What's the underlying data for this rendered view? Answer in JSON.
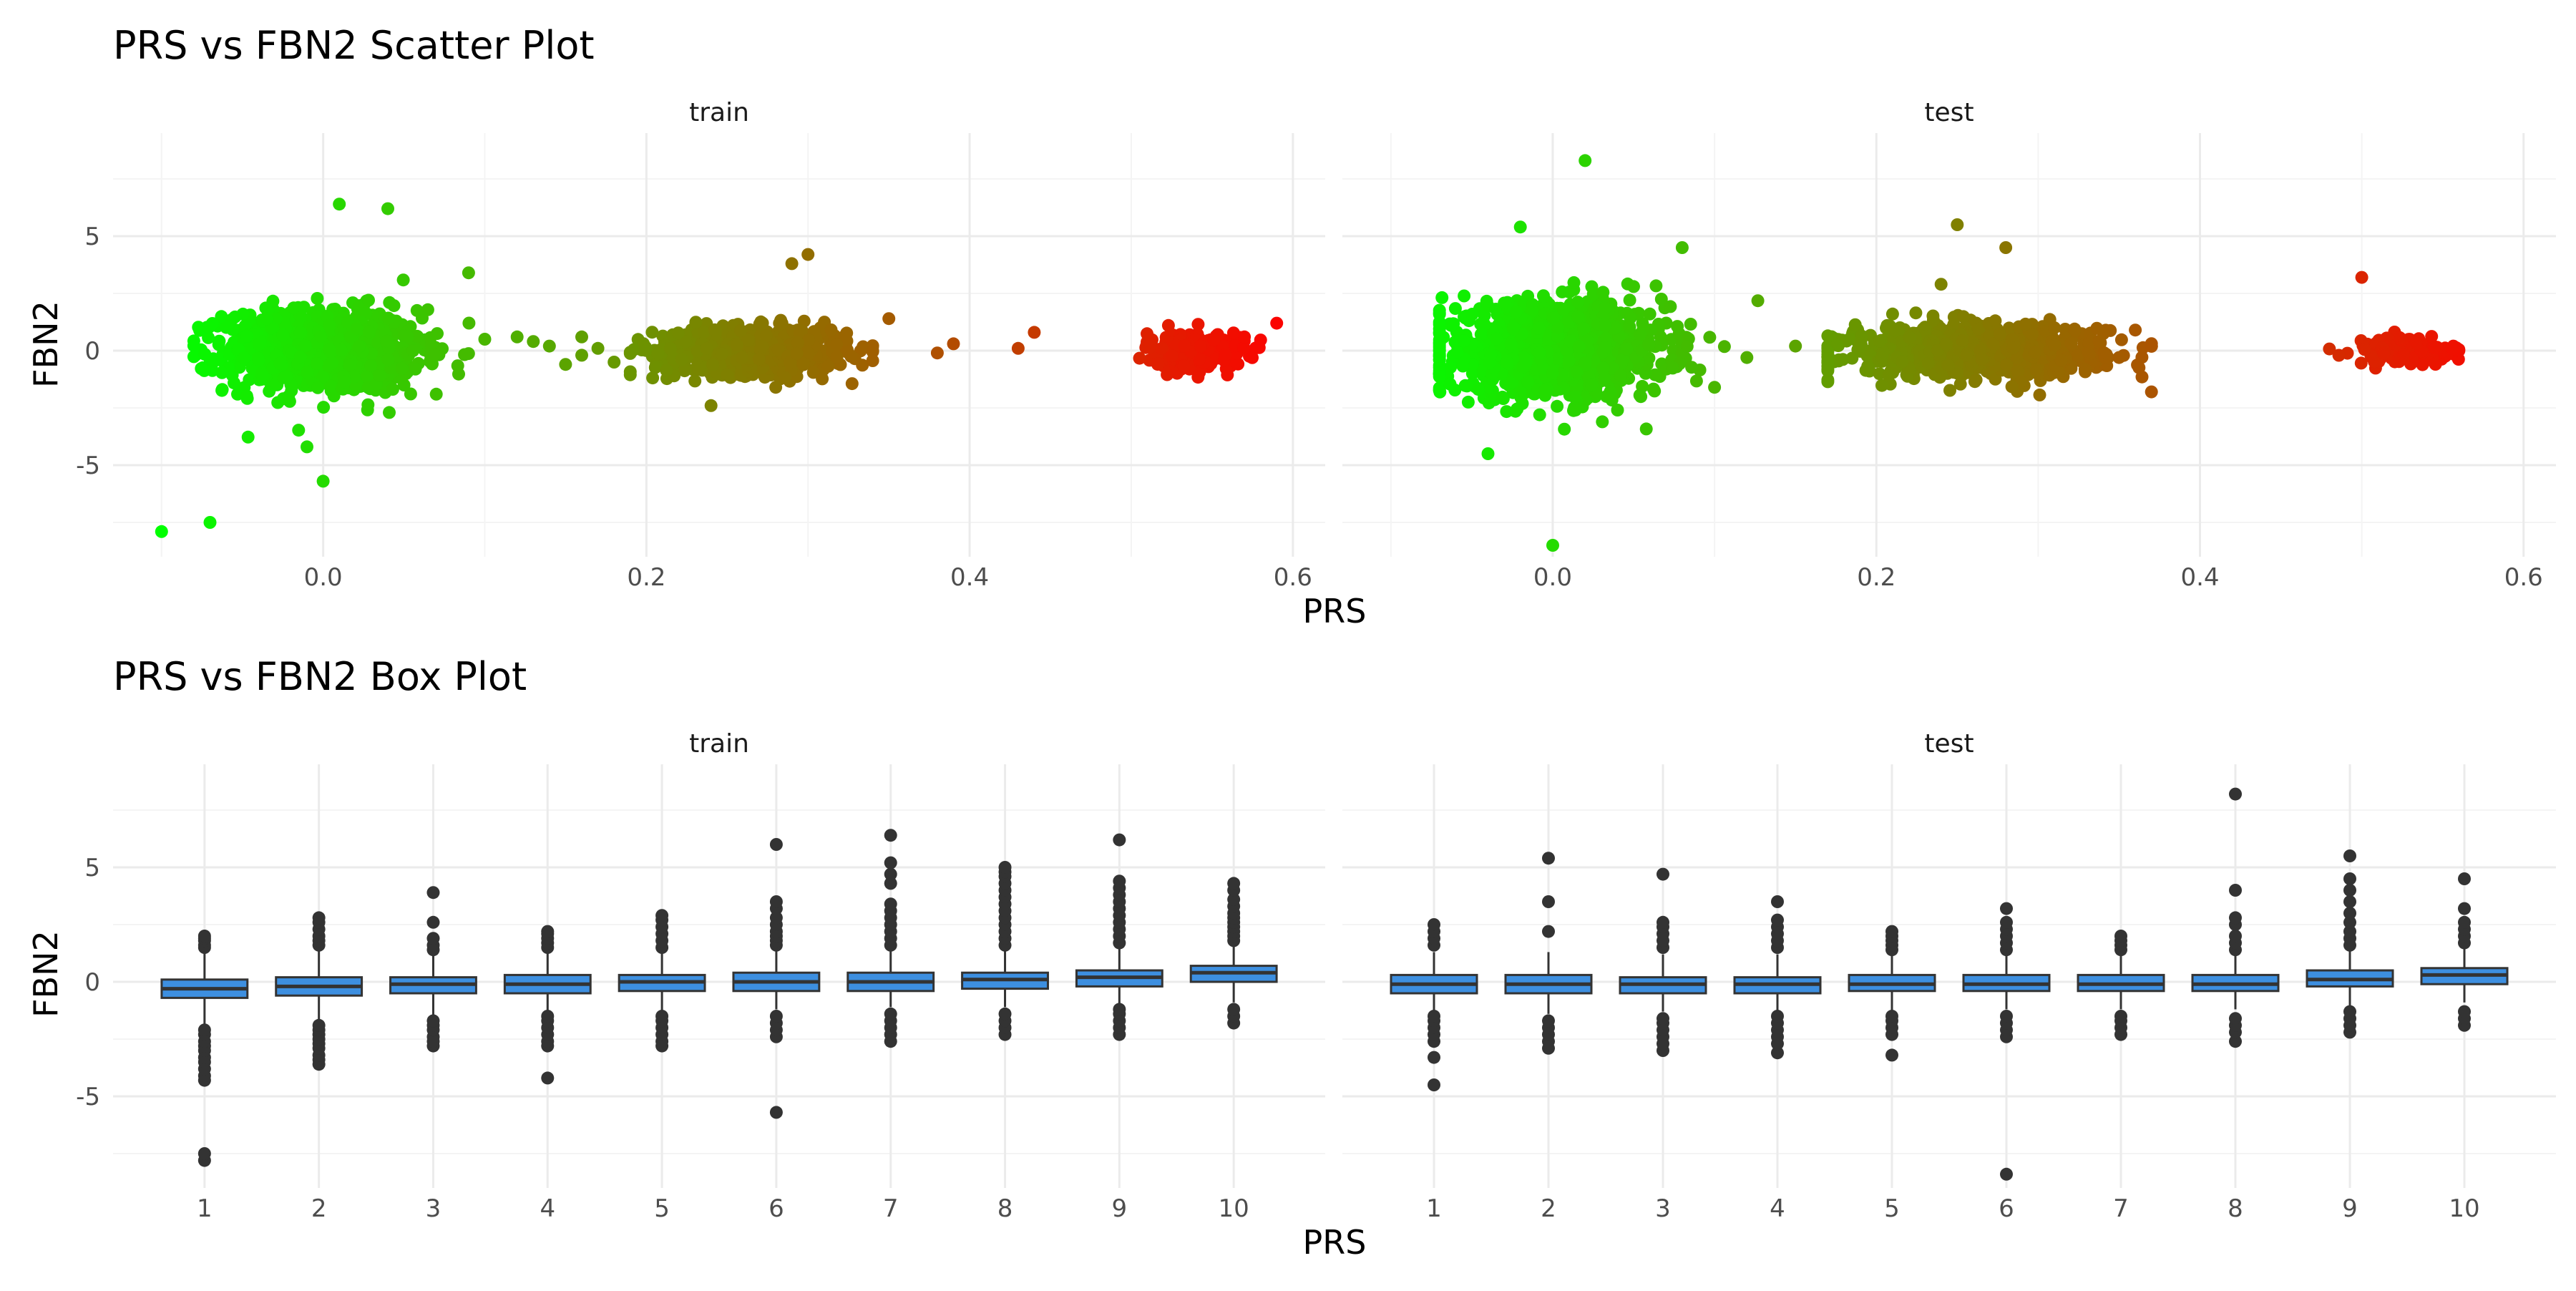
{
  "figure": {
    "axis_tick_color": "#4d4d4d",
    "grid_major_color": "#ebebeb",
    "grid_minor_color": "#f4f4f4",
    "text_color": "#1a1a1a"
  },
  "chart_data": [
    {
      "type": "scatter",
      "title": "PRS vs FBN2 Scatter Plot",
      "xlabel": "PRS",
      "ylabel": "FBN2",
      "facets": [
        "train",
        "test"
      ],
      "xlim": [
        -0.13,
        0.62
      ],
      "ylim": [
        -9,
        9.5
      ],
      "x_ticks": [
        0.0,
        0.2,
        0.4,
        0.6
      ],
      "x_tick_labels": [
        "0.0",
        "0.2",
        "0.4",
        "0.6"
      ],
      "y_ticks": [
        -5,
        0,
        5
      ],
      "y_tick_labels": [
        "-5",
        "0",
        "5"
      ],
      "color_scale": {
        "low": "#00ff00",
        "high": "#ff0000",
        "domain": [
          -0.1,
          0.6
        ],
        "legend": "none"
      },
      "grid": true,
      "series": [
        {
          "facet": "train",
          "clusters": [
            {
              "x_mean": 0.0,
              "x_sd": 0.03,
              "x_min": -0.08,
              "x_max": 0.11,
              "y_sd": 0.9,
              "n": 1100
            },
            {
              "x_mean": 0.265,
              "x_sd": 0.03,
              "x_min": 0.19,
              "x_max": 0.34,
              "y_sd": 0.5,
              "n": 650
            },
            {
              "x_mean": 0.54,
              "x_sd": 0.015,
              "x_min": 0.5,
              "x_max": 0.58,
              "y_sd": 0.4,
              "n": 260
            }
          ],
          "points": [
            {
              "x": -0.1,
              "y": -7.9
            },
            {
              "x": -0.07,
              "y": -7.5
            },
            {
              "x": 0.0,
              "y": -5.7
            },
            {
              "x": 0.01,
              "y": 6.4
            },
            {
              "x": 0.04,
              "y": 6.2
            },
            {
              "x": 0.09,
              "y": 3.4
            },
            {
              "x": 0.3,
              "y": 4.2
            },
            {
              "x": 0.29,
              "y": 3.8
            },
            {
              "x": 0.35,
              "y": 1.4
            },
            {
              "x": 0.38,
              "y": -0.1
            },
            {
              "x": 0.39,
              "y": 0.3
            },
            {
              "x": 0.43,
              "y": 0.1
            },
            {
              "x": 0.44,
              "y": 0.8
            },
            {
              "x": 0.59,
              "y": 1.2
            },
            {
              "x": 0.57,
              "y": 0.6
            },
            {
              "x": 0.16,
              "y": 0.6
            },
            {
              "x": 0.15,
              "y": -0.6
            },
            {
              "x": 0.17,
              "y": 0.1
            },
            {
              "x": 0.18,
              "y": -0.5
            },
            {
              "x": 0.14,
              "y": 0.2
            },
            {
              "x": 0.12,
              "y": 0.6
            },
            {
              "x": 0.13,
              "y": 0.4
            },
            {
              "x": 0.1,
              "y": 0.5
            },
            {
              "x": 0.07,
              "y": -1.9
            },
            {
              "x": 0.05,
              "y": -1.5
            },
            {
              "x": -0.01,
              "y": -4.2
            },
            {
              "x": 0.24,
              "y": -2.4
            },
            {
              "x": 0.28,
              "y": -1.6
            },
            {
              "x": 0.16,
              "y": -0.2
            }
          ]
        },
        {
          "facet": "test",
          "clusters": [
            {
              "x_mean": 0.0,
              "x_sd": 0.035,
              "x_min": -0.07,
              "x_max": 0.15,
              "y_sd": 1.0,
              "n": 1150
            },
            {
              "x_mean": 0.26,
              "x_sd": 0.04,
              "x_min": 0.17,
              "x_max": 0.37,
              "y_sd": 0.55,
              "n": 800
            },
            {
              "x_mean": 0.53,
              "x_sd": 0.017,
              "x_min": 0.48,
              "x_max": 0.56,
              "y_sd": 0.3,
              "n": 140
            }
          ],
          "points": [
            {
              "x": 0.02,
              "y": 8.3
            },
            {
              "x": 0.0,
              "y": -8.5
            },
            {
              "x": -0.04,
              "y": -4.5
            },
            {
              "x": -0.02,
              "y": 5.4
            },
            {
              "x": 0.08,
              "y": 4.5
            },
            {
              "x": 0.25,
              "y": 5.5
            },
            {
              "x": 0.28,
              "y": 4.5
            },
            {
              "x": 0.5,
              "y": 3.2
            },
            {
              "x": 0.37,
              "y": -1.8
            },
            {
              "x": 0.36,
              "y": 0.9
            },
            {
              "x": 0.35,
              "y": -0.3
            },
            {
              "x": 0.15,
              "y": 0.2
            },
            {
              "x": 0.17,
              "y": -0.5
            },
            {
              "x": 0.1,
              "y": -1.6
            },
            {
              "x": 0.06,
              "y": 1.6
            },
            {
              "x": 0.05,
              "y": 2.8
            },
            {
              "x": 0.24,
              "y": 2.9
            },
            {
              "x": 0.21,
              "y": 1.6
            },
            {
              "x": 0.31,
              "y": 1.0
            },
            {
              "x": 0.12,
              "y": -0.3
            }
          ]
        }
      ]
    },
    {
      "type": "box",
      "title": "PRS vs FBN2 Box Plot",
      "xlabel": "PRS",
      "ylabel": "FBN2",
      "facets": [
        "train",
        "test"
      ],
      "categories": [
        "1",
        "2",
        "3",
        "4",
        "5",
        "6",
        "7",
        "8",
        "9",
        "10"
      ],
      "ylim": [
        -9,
        9.5
      ],
      "y_ticks": [
        -5,
        0,
        5
      ],
      "y_tick_labels": [
        "-5",
        "0",
        "5"
      ],
      "box_fill": "#3d8fe0",
      "box_line": "#333333",
      "grid": true,
      "series": [
        {
          "facet": "train",
          "boxes": [
            {
              "category": "1",
              "q1": -0.7,
              "median": -0.3,
              "q3": 0.1,
              "whisker_low": -1.9,
              "whisker_high": 1.3,
              "outliers": [
                -7.8,
                -7.5,
                -4.3,
                -4.1,
                -3.8,
                -3.5,
                -3.3,
                -3.0,
                -2.8,
                -2.6,
                -2.3,
                -2.1,
                1.5,
                1.6,
                1.8,
                1.9,
                2.0
              ]
            },
            {
              "category": "2",
              "q1": -0.6,
              "median": -0.2,
              "q3": 0.2,
              "whisker_low": -1.7,
              "whisker_high": 1.4,
              "outliers": [
                -3.6,
                -3.4,
                -3.2,
                -2.9,
                -2.7,
                -2.5,
                -2.3,
                -2.1,
                -1.9,
                1.6,
                1.8,
                2.0,
                2.3,
                2.6,
                2.8
              ]
            },
            {
              "category": "3",
              "q1": -0.5,
              "median": -0.1,
              "q3": 0.2,
              "whisker_low": -1.5,
              "whisker_high": 1.2,
              "outliers": [
                -2.8,
                -2.6,
                -2.4,
                -2.1,
                -1.9,
                -1.7,
                1.4,
                1.6,
                1.9,
                2.6,
                3.9
              ]
            },
            {
              "category": "4",
              "q1": -0.5,
              "median": -0.1,
              "q3": 0.3,
              "whisker_low": -1.4,
              "whisker_high": 1.3,
              "outliers": [
                -4.2,
                -2.8,
                -2.6,
                -2.3,
                -2.0,
                -1.7,
                -1.5,
                1.5,
                1.7,
                1.9,
                2.1,
                2.2
              ]
            },
            {
              "category": "5",
              "q1": -0.4,
              "median": 0.0,
              "q3": 0.3,
              "whisker_low": -1.3,
              "whisker_high": 1.3,
              "outliers": [
                -2.8,
                -2.6,
                -2.3,
                -2.0,
                -1.7,
                -1.5,
                1.5,
                1.8,
                2.1,
                2.4,
                2.7,
                2.9
              ]
            },
            {
              "category": "6",
              "q1": -0.4,
              "median": 0.0,
              "q3": 0.4,
              "whisker_low": -1.2,
              "whisker_high": 1.4,
              "outliers": [
                -5.7,
                -2.4,
                -2.1,
                -1.8,
                -1.5,
                1.6,
                1.8,
                2.0,
                2.2,
                2.5,
                2.8,
                3.2,
                3.5,
                6.0
              ]
            },
            {
              "category": "7",
              "q1": -0.4,
              "median": 0.0,
              "q3": 0.4,
              "whisker_low": -1.1,
              "whisker_high": 1.4,
              "outliers": [
                -2.6,
                -2.3,
                -2.0,
                -1.7,
                -1.4,
                1.6,
                1.9,
                2.2,
                2.5,
                2.8,
                3.1,
                3.4,
                4.3,
                4.7,
                5.2,
                6.4
              ]
            },
            {
              "category": "8",
              "q1": -0.3,
              "median": 0.1,
              "q3": 0.4,
              "whisker_low": -1.1,
              "whisker_high": 1.4,
              "outliers": [
                -2.3,
                -2.0,
                -1.7,
                -1.4,
                1.6,
                1.9,
                2.2,
                2.5,
                2.8,
                3.1,
                3.4,
                3.7,
                4.0,
                4.3,
                4.6,
                4.8,
                5.0
              ]
            },
            {
              "category": "9",
              "q1": -0.2,
              "median": 0.2,
              "q3": 0.5,
              "whisker_low": -1.0,
              "whisker_high": 1.5,
              "outliers": [
                -2.3,
                -2.0,
                -1.7,
                -1.4,
                -1.2,
                1.7,
                2.0,
                2.3,
                2.6,
                2.9,
                3.2,
                3.5,
                3.8,
                4.1,
                4.4,
                6.2
              ]
            },
            {
              "category": "10",
              "q1": 0.0,
              "median": 0.4,
              "q3": 0.7,
              "whisker_low": -0.9,
              "whisker_high": 1.6,
              "outliers": [
                -1.8,
                -1.5,
                -1.2,
                1.8,
                2.0,
                2.2,
                2.4,
                2.6,
                2.8,
                3.0,
                3.3,
                3.6,
                4.0,
                4.3
              ]
            }
          ]
        },
        {
          "facet": "test",
          "boxes": [
            {
              "category": "1",
              "q1": -0.5,
              "median": -0.1,
              "q3": 0.3,
              "whisker_low": -1.3,
              "whisker_high": 1.3,
              "outliers": [
                -4.5,
                -3.3,
                -2.6,
                -2.3,
                -2.0,
                -1.7,
                -1.5,
                1.6,
                1.9,
                2.2,
                2.5
              ]
            },
            {
              "category": "2",
              "q1": -0.5,
              "median": -0.1,
              "q3": 0.3,
              "whisker_low": -1.4,
              "whisker_high": 1.3,
              "outliers": [
                -2.9,
                -2.6,
                -2.3,
                -2.0,
                -1.7,
                2.2,
                3.5,
                5.4
              ]
            },
            {
              "category": "3",
              "q1": -0.5,
              "median": -0.1,
              "q3": 0.2,
              "whisker_low": -1.3,
              "whisker_high": 1.2,
              "outliers": [
                -3.0,
                -2.7,
                -2.4,
                -2.1,
                -1.8,
                -1.6,
                1.5,
                1.8,
                2.1,
                2.4,
                2.6,
                4.7
              ]
            },
            {
              "category": "4",
              "q1": -0.5,
              "median": -0.1,
              "q3": 0.2,
              "whisker_low": -1.3,
              "whisker_high": 1.2,
              "outliers": [
                -3.1,
                -2.7,
                -2.4,
                -2.1,
                -1.8,
                -1.5,
                1.5,
                1.8,
                2.1,
                2.4,
                2.7,
                3.5
              ]
            },
            {
              "category": "5",
              "q1": -0.4,
              "median": -0.1,
              "q3": 0.3,
              "whisker_low": -1.3,
              "whisker_high": 1.2,
              "outliers": [
                -3.2,
                -2.3,
                -2.0,
                -1.7,
                -1.5,
                1.4,
                1.6,
                1.8,
                2.0,
                2.2
              ]
            },
            {
              "category": "6",
              "q1": -0.4,
              "median": -0.1,
              "q3": 0.3,
              "whisker_low": -1.2,
              "whisker_high": 1.2,
              "outliers": [
                -8.4,
                -2.4,
                -2.1,
                -1.8,
                -1.5,
                1.4,
                1.7,
                2.0,
                2.3,
                2.6,
                3.2
              ]
            },
            {
              "category": "7",
              "q1": -0.4,
              "median": -0.1,
              "q3": 0.3,
              "whisker_low": -1.2,
              "whisker_high": 1.2,
              "outliers": [
                -2.3,
                -2.0,
                -1.7,
                -1.5,
                1.4,
                1.6,
                1.8,
                2.0
              ]
            },
            {
              "category": "8",
              "q1": -0.4,
              "median": -0.1,
              "q3": 0.3,
              "whisker_low": -1.2,
              "whisker_high": 1.2,
              "outliers": [
                -2.6,
                -2.2,
                -1.9,
                -1.6,
                1.4,
                1.7,
                2.0,
                2.5,
                2.8,
                4.0,
                8.2
              ]
            },
            {
              "category": "9",
              "q1": -0.2,
              "median": 0.1,
              "q3": 0.5,
              "whisker_low": -1.1,
              "whisker_high": 1.4,
              "outliers": [
                -2.2,
                -1.9,
                -1.6,
                -1.3,
                1.6,
                1.9,
                2.2,
                2.6,
                3.0,
                3.5,
                4.0,
                4.5,
                5.5
              ]
            },
            {
              "category": "10",
              "q1": -0.1,
              "median": 0.3,
              "q3": 0.6,
              "whisker_low": -0.9,
              "whisker_high": 1.5,
              "outliers": [
                -1.9,
                -1.6,
                -1.3,
                1.7,
                2.0,
                2.3,
                2.6,
                3.2,
                4.5
              ]
            }
          ]
        }
      ]
    }
  ]
}
